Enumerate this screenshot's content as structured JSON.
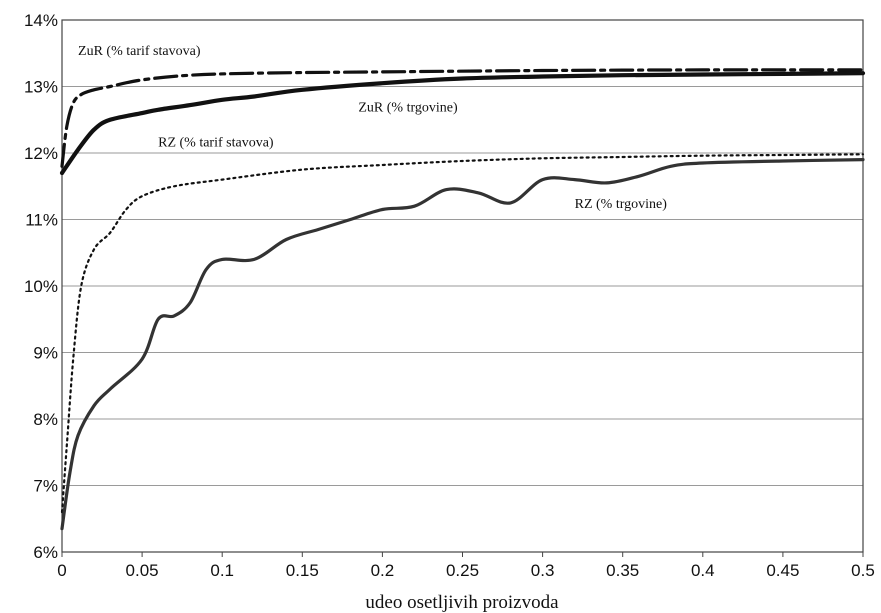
{
  "chart_data": {
    "type": "line",
    "title": "",
    "xlabel": "udeo osetljivih proizvoda",
    "ylabel": "",
    "xlim": [
      0,
      0.5
    ],
    "ylim": [
      6,
      14
    ],
    "x_ticks": [
      "0",
      "0.05",
      "0.1",
      "0.15",
      "0.2",
      "0.25",
      "0.3",
      "0.35",
      "0.4",
      "0.45",
      "0.5"
    ],
    "y_ticks": [
      "6%",
      "7%",
      "8%",
      "9%",
      "10%",
      "11%",
      "12%",
      "13%",
      "14%"
    ],
    "grid": "horizontal",
    "legend": "none",
    "series": [
      {
        "name": "ZuR (% tarif stavova)",
        "style": "dashdot",
        "color": "#111111",
        "x": [
          0,
          0.003,
          0.007,
          0.012,
          0.02,
          0.03,
          0.05,
          0.08,
          0.12,
          0.2,
          0.3,
          0.4,
          0.5
        ],
        "y": [
          11.8,
          12.4,
          12.75,
          12.88,
          12.95,
          13.0,
          13.1,
          13.17,
          13.2,
          13.22,
          13.24,
          13.25,
          13.25
        ]
      },
      {
        "name": "ZuR (% trgovine)",
        "style": "solid-thick",
        "color": "#111111",
        "x": [
          0,
          0.01,
          0.02,
          0.03,
          0.05,
          0.06,
          0.08,
          0.1,
          0.12,
          0.15,
          0.2,
          0.25,
          0.3,
          0.35,
          0.4,
          0.45,
          0.5
        ],
        "y": [
          11.7,
          12.05,
          12.35,
          12.5,
          12.6,
          12.65,
          12.72,
          12.8,
          12.85,
          12.95,
          13.05,
          13.12,
          13.15,
          13.17,
          13.18,
          13.19,
          13.2
        ]
      },
      {
        "name": "RZ (% tarif stavova)",
        "style": "dotted",
        "color": "#111111",
        "x": [
          0,
          0.003,
          0.007,
          0.012,
          0.02,
          0.03,
          0.04,
          0.05,
          0.07,
          0.1,
          0.15,
          0.2,
          0.25,
          0.3,
          0.35,
          0.4,
          0.45,
          0.5
        ],
        "y": [
          6.6,
          7.6,
          8.9,
          10.0,
          10.55,
          10.8,
          11.15,
          11.35,
          11.5,
          11.6,
          11.75,
          11.82,
          11.88,
          11.92,
          11.94,
          11.96,
          11.97,
          11.98
        ]
      },
      {
        "name": "RZ (% trgovine)",
        "style": "solid",
        "color": "#333333",
        "x": [
          0,
          0.005,
          0.01,
          0.02,
          0.03,
          0.05,
          0.06,
          0.07,
          0.08,
          0.09,
          0.1,
          0.12,
          0.14,
          0.16,
          0.18,
          0.2,
          0.22,
          0.24,
          0.26,
          0.28,
          0.3,
          0.32,
          0.34,
          0.36,
          0.38,
          0.4,
          0.45,
          0.5
        ],
        "y": [
          6.35,
          7.2,
          7.75,
          8.2,
          8.45,
          8.9,
          9.5,
          9.55,
          9.75,
          10.25,
          10.4,
          10.4,
          10.7,
          10.85,
          11.0,
          11.15,
          11.2,
          11.45,
          11.4,
          11.25,
          11.6,
          11.6,
          11.55,
          11.65,
          11.8,
          11.85,
          11.88,
          11.9
        ]
      }
    ],
    "annotations": [
      {
        "text": "ZuR (% tarif stavova)",
        "x": 0.01,
        "y": 13.55
      },
      {
        "text": "ZuR (% trgovine)",
        "x": 0.185,
        "y": 12.7
      },
      {
        "text": "RZ (% tarif stavova)",
        "x": 0.06,
        "y": 12.17
      },
      {
        "text": "RZ (% trgovine)",
        "x": 0.32,
        "y": 11.25
      }
    ]
  }
}
